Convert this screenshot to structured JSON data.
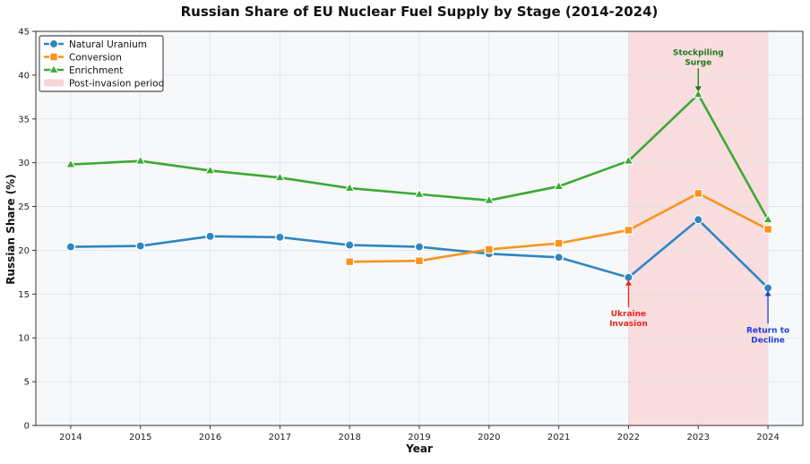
{
  "chart_data": {
    "type": "line",
    "title": "Russian Share of EU Nuclear Fuel Supply by Stage (2014-2024)",
    "xlabel": "Year",
    "ylabel": "Russian Share (%)",
    "ylim": [
      0,
      45
    ],
    "xlim": [
      2013.5,
      2024.5
    ],
    "yticks": [
      0,
      5,
      10,
      15,
      20,
      25,
      30,
      35,
      40,
      45
    ],
    "xticks": [
      2014,
      2015,
      2016,
      2017,
      2018,
      2019,
      2020,
      2021,
      2022,
      2023,
      2024
    ],
    "grid": true,
    "legend_position": "top-left",
    "colors": {
      "natural_uranium": "#2e86c1",
      "conversion": "#f7941d",
      "enrichment": "#3aaa35",
      "shade": "#f9d4d6",
      "plot_bg": "#f7f8fa"
    },
    "series": [
      {
        "name": "Natural Uranium",
        "marker": "circle",
        "color": "#2e86c1",
        "x": [
          2014,
          2015,
          2016,
          2017,
          2018,
          2019,
          2020,
          2021,
          2022,
          2023,
          2024
        ],
        "values": [
          20.4,
          20.5,
          21.6,
          21.5,
          20.6,
          20.4,
          19.6,
          19.2,
          16.9,
          23.5,
          15.7
        ]
      },
      {
        "name": "Conversion",
        "marker": "square",
        "color": "#f7941d",
        "x": [
          2018,
          2019,
          2020,
          2021,
          2022,
          2023,
          2024
        ],
        "values": [
          18.7,
          18.8,
          20.1,
          20.8,
          22.3,
          26.5,
          22.4
        ]
      },
      {
        "name": "Enrichment",
        "marker": "triangle",
        "color": "#3aaa35",
        "x": [
          2014,
          2015,
          2016,
          2017,
          2018,
          2019,
          2020,
          2021,
          2022,
          2023,
          2024
        ],
        "values": [
          29.8,
          30.2,
          29.1,
          28.3,
          27.1,
          26.4,
          25.7,
          27.3,
          30.2,
          37.8,
          23.5
        ]
      }
    ],
    "shaded_region": {
      "label": "Post-invasion period",
      "x_start": 2022,
      "x_end": 2024
    },
    "annotations": [
      {
        "lines": [
          "Stockpiling",
          "Surge"
        ],
        "x": 2023,
        "y": 37.8,
        "text_y": 42.3,
        "color": "#1b7a1b",
        "direction": "down"
      },
      {
        "lines": [
          "Ukraine",
          "Invasion"
        ],
        "x": 2022,
        "y": 16.9,
        "text_y": 12.5,
        "color": "#e8261b",
        "direction": "up"
      },
      {
        "lines": [
          "Return to",
          "Decline"
        ],
        "x": 2024,
        "y": 15.7,
        "text_y": 10.6,
        "color": "#1f3fd6",
        "direction": "up"
      }
    ]
  }
}
